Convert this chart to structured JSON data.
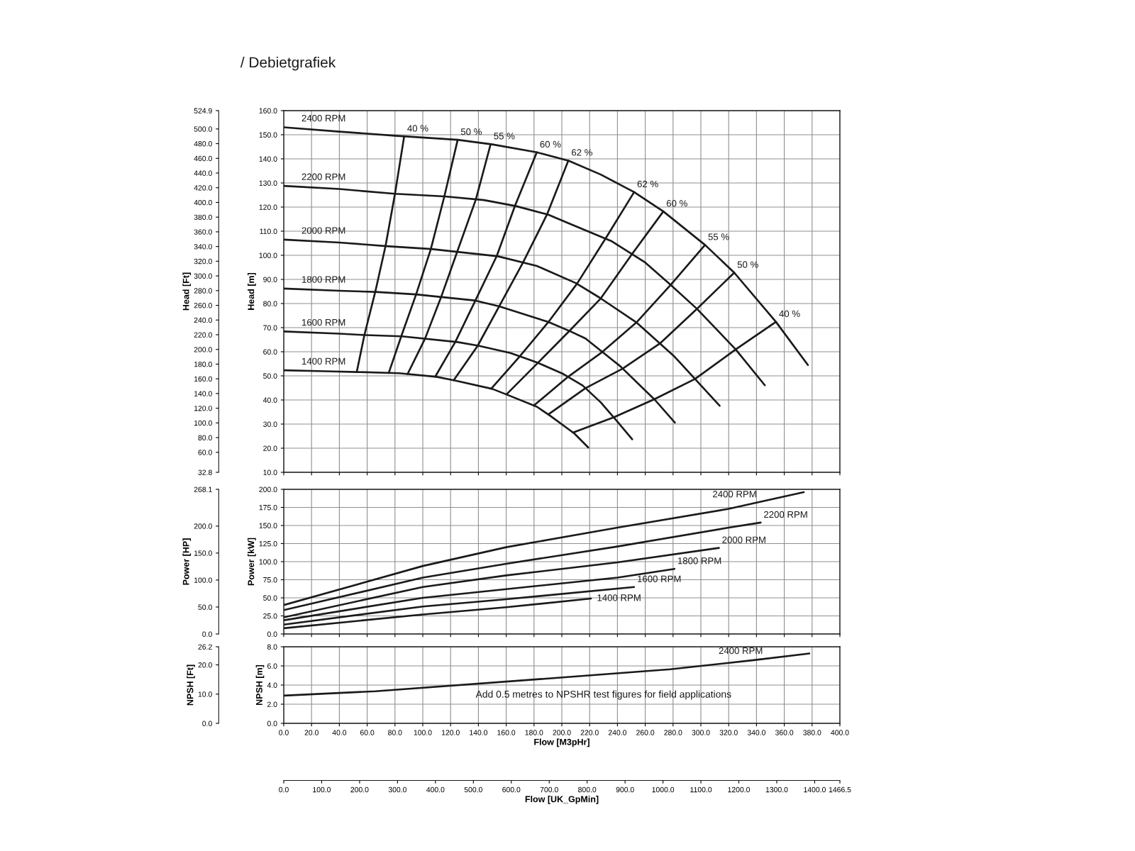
{
  "chart_data": [
    {
      "type": "line",
      "title": "/ Debietgrafiek",
      "ylabel": "Head [m]",
      "y2label": "Head [Ft]",
      "xlim": [
        0,
        400
      ],
      "xticks": [
        0,
        20,
        40,
        60,
        80,
        100,
        120,
        140,
        160,
        180,
        200,
        220,
        240,
        260,
        280,
        300,
        320,
        340,
        360,
        380,
        400
      ],
      "ylim": [
        10,
        160
      ],
      "yticks": [
        {
          "value": 10,
          "label": "10.0"
        },
        {
          "value": 20,
          "label": "20.0"
        },
        {
          "value": 30,
          "label": "30.0"
        },
        {
          "value": 40,
          "label": "40.0"
        },
        {
          "value": 50,
          "label": "50.0"
        },
        {
          "value": 60,
          "label": "60.0"
        },
        {
          "value": 70,
          "label": "70.0"
        },
        {
          "value": 80,
          "label": "80.0"
        },
        {
          "value": 90,
          "label": "90.0"
        },
        {
          "value": 100,
          "label": "100.0"
        },
        {
          "value": 110,
          "label": "110.0"
        },
        {
          "value": 120,
          "label": "120.0"
        },
        {
          "value": 130,
          "label": "130.0"
        },
        {
          "value": 140,
          "label": "140.0"
        },
        {
          "value": 150,
          "label": "150.0"
        },
        {
          "value": 160,
          "label": "160.0"
        }
      ],
      "y2lim": [
        32.8,
        524.9
      ],
      "y2ticks": [
        {
          "value": 32.8,
          "label": "32.8"
        },
        {
          "value": 60,
          "label": "60.0"
        },
        {
          "value": 80,
          "label": "80.0"
        },
        {
          "value": 100,
          "label": "100.0"
        },
        {
          "value": 120,
          "label": "120.0"
        },
        {
          "value": 140,
          "label": "140.0"
        },
        {
          "value": 160,
          "label": "160.0"
        },
        {
          "value": 180,
          "label": "180.0"
        },
        {
          "value": 200,
          "label": "200.0"
        },
        {
          "value": 220,
          "label": "220.0"
        },
        {
          "value": 240,
          "label": "240.0"
        },
        {
          "value": 260,
          "label": "260.0"
        },
        {
          "value": 280,
          "label": "280.0"
        },
        {
          "value": 300,
          "label": "300.0"
        },
        {
          "value": 320,
          "label": "320.0"
        },
        {
          "value": 340,
          "label": "340.0"
        },
        {
          "value": 360,
          "label": "360.0"
        },
        {
          "value": 380,
          "label": "380.0"
        },
        {
          "value": 400,
          "label": "400.0"
        },
        {
          "value": 420,
          "label": "420.0"
        },
        {
          "value": 440,
          "label": "440.0"
        },
        {
          "value": 460,
          "label": "460.0"
        },
        {
          "value": 480,
          "label": "480.0"
        },
        {
          "value": 500,
          "label": "500.0"
        },
        {
          "value": 524.9,
          "label": "524.9"
        }
      ],
      "tick_labels": "y",
      "grid": true,
      "series": [
        {
          "name": "2400 RPM",
          "color": "#1a1a1a",
          "x": [
            0,
            40,
            80,
            125,
            150,
            182,
            205,
            228,
            252,
            273,
            303,
            324,
            354,
            377
          ],
          "values": [
            153.1,
            151.3,
            149.6,
            147.9,
            146.0,
            142.7,
            139.2,
            133.5,
            126.2,
            118.2,
            104.3,
            92.8,
            72.4,
            54.5
          ]
        },
        {
          "name": "2200 RPM",
          "color": "#1a1a1a",
          "x": [
            0,
            40,
            80,
            116,
            144,
            167,
            190,
            206,
            236,
            260,
            278,
            297,
            325,
            346
          ],
          "values": [
            128.8,
            127.5,
            125.5,
            124.4,
            122.9,
            120.4,
            116.9,
            113.0,
            105.8,
            97.0,
            87.9,
            77.9,
            61.0,
            46.1
          ]
        },
        {
          "name": "2000 RPM",
          "color": "#1a1a1a",
          "x": [
            0,
            40,
            74,
            106,
            154,
            182,
            210,
            227,
            254,
            281,
            313.5
          ],
          "values": [
            106.5,
            105.3,
            103.8,
            102.6,
            99.6,
            95.6,
            88.5,
            82.5,
            72.0,
            58.0,
            37.6
          ]
        },
        {
          "name": "1800 RPM",
          "color": "#1a1a1a",
          "x": [
            0,
            40,
            66,
            95,
            137,
            155,
            190,
            206,
            217,
            242,
            267,
            281.3
          ],
          "values": [
            86.2,
            85.3,
            84.8,
            83.8,
            81.3,
            78.8,
            72.4,
            68.5,
            65.5,
            54.0,
            40.0,
            30.6
          ]
        },
        {
          "name": "1600 RPM",
          "color": "#1a1a1a",
          "x": [
            0,
            40,
            59,
            85,
            125,
            140,
            163,
            182,
            201,
            215,
            228,
            240,
            250.6
          ],
          "values": [
            68.4,
            67.5,
            66.9,
            66.4,
            64.0,
            62.5,
            59.5,
            55.6,
            50.8,
            46.0,
            39.0,
            31.0,
            23.7
          ]
        },
        {
          "name": "1400 RPM",
          "color": "#1a1a1a",
          "x": [
            0,
            30,
            53,
            83,
            110,
            123,
            150,
            161,
            182,
            191,
            209,
            219
          ],
          "values": [
            52.3,
            51.9,
            51.6,
            51.1,
            49.6,
            48.1,
            44.6,
            42.1,
            37.2,
            33.7,
            26.1,
            20.3
          ]
        },
        {
          "name": "40 %",
          "color": "#1a1a1a",
          "x": [
            52.5,
            58,
            65.8,
            73.2,
            80,
            86.6
          ],
          "values": [
            51.6,
            66.9,
            84.8,
            103.8,
            125.5,
            149.3
          ]
        },
        {
          "name": "50 %",
          "color": "#1a1a1a",
          "x": [
            75.5,
            84.5,
            95.2,
            105.8,
            115.5,
            125.1
          ],
          "values": [
            51.2,
            66.4,
            83.8,
            102.6,
            124.4,
            147.9
          ]
        },
        {
          "name": "55 %",
          "color": "#1a1a1a",
          "x": [
            89.1,
            101.6,
            113.2,
            124.7,
            138.2,
            148.8
          ],
          "values": [
            50.8,
            65.4,
            82.7,
            101.4,
            123.2,
            146.1
          ]
        },
        {
          "name": "60 %",
          "color": "#1a1a1a",
          "x": [
            109,
            123.4,
            137.8,
            153.2,
            166.3,
            182
          ],
          "values": [
            49.7,
            64.1,
            81.2,
            99.7,
            120.5,
            142.7
          ]
        },
        {
          "name": "62 %",
          "color": "#1a1a1a",
          "x": [
            122.3,
            139.5,
            154.9,
            172.1,
            189.4,
            204.7
          ],
          "values": [
            48.2,
            62.5,
            78.8,
            97.0,
            117.0,
            139.3
          ]
        },
        {
          "name": "62 %",
          "color": "#1a1a1a",
          "x": [
            149.2,
            169.8,
            190.3,
            210.9,
            231.4,
            252
          ],
          "values": [
            44.7,
            58.1,
            72.3,
            88.2,
            106.9,
            126.2
          ]
        },
        {
          "name": "60 %",
          "color": "#1a1a1a",
          "x": [
            160.2,
            182.8,
            205.4,
            228,
            250.5,
            273
          ],
          "values": [
            42.3,
            55.4,
            68.6,
            82.1,
            100.5,
            118.2
          ]
        },
        {
          "name": "55 %",
          "color": "#1a1a1a",
          "x": [
            179.9,
            204.5,
            229.1,
            253.6,
            278.2,
            303
          ],
          "values": [
            37.7,
            49.6,
            59.9,
            72.1,
            87.7,
            104.3
          ]
        },
        {
          "name": "50 %",
          "color": "#1a1a1a",
          "x": [
            190.3,
            217,
            243.7,
            270.5,
            297.2,
            324
          ],
          "values": [
            34.0,
            44.9,
            53.0,
            63.4,
            77.8,
            92.8
          ]
        },
        {
          "name": "40 %",
          "color": "#1a1a1a",
          "x": [
            208,
            237.3,
            266.5,
            295.8,
            325.1,
            354
          ],
          "values": [
            26.5,
            32.8,
            40.3,
            48.7,
            61.0,
            72.4
          ]
        }
      ]
    },
    {
      "type": "line",
      "ylabel": "Power [kW]",
      "y2label": "Power [HP]",
      "xlim": [
        0,
        400
      ],
      "xticks": [
        0,
        20,
        40,
        60,
        80,
        100,
        120,
        140,
        160,
        180,
        200,
        220,
        240,
        260,
        280,
        300,
        320,
        340,
        360,
        380,
        400
      ],
      "ylim": [
        0,
        200
      ],
      "yticks": [
        {
          "value": 0,
          "label": "0.0"
        },
        {
          "value": 25,
          "label": "25.0"
        },
        {
          "value": 50,
          "label": "50.0"
        },
        {
          "value": 75,
          "label": "75.0"
        },
        {
          "value": 100,
          "label": "100.0"
        },
        {
          "value": 125,
          "label": "125.0"
        },
        {
          "value": 150,
          "label": "150.0"
        },
        {
          "value": 175,
          "label": "175.0"
        },
        {
          "value": 200,
          "label": "200.0"
        }
      ],
      "y2lim": [
        0,
        268.1
      ],
      "y2ticks": [
        {
          "value": 0,
          "label": "0.0"
        },
        {
          "value": 50,
          "label": "50.0"
        },
        {
          "value": 100,
          "label": "100.0"
        },
        {
          "value": 150,
          "label": "150.0"
        },
        {
          "value": 200,
          "label": "200.0"
        },
        {
          "value": 268.1,
          "label": "268.1"
        }
      ],
      "tick_labels": "y",
      "grid": true,
      "series": [
        {
          "name": "2400 RPM",
          "color": "#1a1a1a",
          "x": [
            0,
            100,
            160,
            240,
            320,
            374
          ],
          "values": [
            40,
            94,
            120,
            147,
            173,
            196
          ]
        },
        {
          "name": "2200 RPM",
          "color": "#1a1a1a",
          "x": [
            0,
            100,
            160,
            240,
            320,
            343
          ],
          "values": [
            33,
            78,
            97,
            121,
            147,
            154
          ]
        },
        {
          "name": "2000 RPM",
          "color": "#1a1a1a",
          "x": [
            0,
            100,
            160,
            240,
            313
          ],
          "values": [
            23,
            65,
            81,
            99,
            119
          ]
        },
        {
          "name": "1800 RPM",
          "color": "#1a1a1a",
          "x": [
            0,
            100,
            160,
            240,
            281
          ],
          "values": [
            19,
            50,
            62,
            78,
            90
          ]
        },
        {
          "name": "1600 RPM",
          "color": "#1a1a1a",
          "x": [
            0,
            100,
            160,
            252
          ],
          "values": [
            13,
            38,
            48,
            65
          ]
        },
        {
          "name": "1400 RPM",
          "color": "#1a1a1a",
          "x": [
            0,
            100,
            160,
            221
          ],
          "values": [
            8,
            27,
            37,
            49
          ]
        }
      ]
    },
    {
      "type": "line",
      "ylabel": "NPSH [m]",
      "y2label": "NPSH [Ft]",
      "xlabel": "Flow [M3pHr]",
      "x2label": "Flow [UK_GpMin]",
      "xlim": [
        0,
        400
      ],
      "xticks": [
        {
          "value": 0,
          "label": "0.0"
        },
        {
          "value": 20,
          "label": "20.0"
        },
        {
          "value": 40,
          "label": "40.0"
        },
        {
          "value": 60,
          "label": "60.0"
        },
        {
          "value": 80,
          "label": "80.0"
        },
        {
          "value": 100,
          "label": "100.0"
        },
        {
          "value": 120,
          "label": "120.0"
        },
        {
          "value": 140,
          "label": "140.0"
        },
        {
          "value": 160,
          "label": "160.0"
        },
        {
          "value": 180,
          "label": "180.0"
        },
        {
          "value": 200,
          "label": "200.0"
        },
        {
          "value": 220,
          "label": "220.0"
        },
        {
          "value": 240,
          "label": "240.0"
        },
        {
          "value": 260,
          "label": "260.0"
        },
        {
          "value": 280,
          "label": "280.0"
        },
        {
          "value": 300,
          "label": "300.0"
        },
        {
          "value": 320,
          "label": "320.0"
        },
        {
          "value": 340,
          "label": "340.0"
        },
        {
          "value": 360,
          "label": "360.0"
        },
        {
          "value": 380,
          "label": "380.0"
        },
        {
          "value": 400,
          "label": "400.0"
        }
      ],
      "x2lim": [
        0,
        1466.5
      ],
      "x2ticks": [
        {
          "value": 0,
          "label": "0.0"
        },
        {
          "value": 100,
          "label": "100.0"
        },
        {
          "value": 200,
          "label": "200.0"
        },
        {
          "value": 300,
          "label": "300.0"
        },
        {
          "value": 400,
          "label": "400.0"
        },
        {
          "value": 500,
          "label": "500.0"
        },
        {
          "value": 600,
          "label": "600.0"
        },
        {
          "value": 700,
          "label": "700.0"
        },
        {
          "value": 800,
          "label": "800.0"
        },
        {
          "value": 900,
          "label": "900.0"
        },
        {
          "value": 1000,
          "label": "1000.0"
        },
        {
          "value": 1100,
          "label": "1100.0"
        },
        {
          "value": 1200,
          "label": "1200.0"
        },
        {
          "value": 1300,
          "label": "1300.0"
        },
        {
          "value": 1400,
          "label": "1400.0"
        },
        {
          "value": 1466.5,
          "label": "1466.5"
        }
      ],
      "ylim": [
        0,
        8
      ],
      "yticks": [
        {
          "value": 0,
          "label": "0.0"
        },
        {
          "value": 2,
          "label": "2.0"
        },
        {
          "value": 4,
          "label": "4.0"
        },
        {
          "value": 6,
          "label": "6.0"
        },
        {
          "value": 8,
          "label": "8.0"
        }
      ],
      "y2lim": [
        0,
        26.2
      ],
      "y2ticks": [
        {
          "value": 0,
          "label": "0.0"
        },
        {
          "value": 10,
          "label": "10.0"
        },
        {
          "value": 20,
          "label": "20.0"
        },
        {
          "value": 26.2,
          "label": "26.2"
        }
      ],
      "grid": true,
      "annotations": [
        "Add 0.5 metres to NPSHR test figures for field applications"
      ],
      "series": [
        {
          "name": "2400 RPM",
          "color": "#1a1a1a",
          "x": [
            0,
            66,
            187,
            278,
            338,
            378
          ],
          "values": [
            2.9,
            3.35,
            4.65,
            5.65,
            6.6,
            7.3
          ]
        }
      ]
    }
  ]
}
